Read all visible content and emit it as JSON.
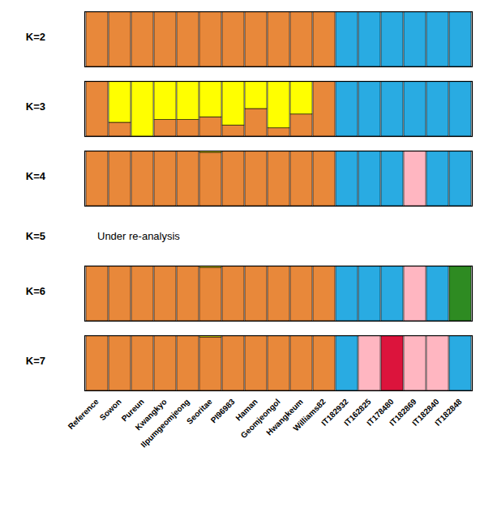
{
  "chart_data": [
    {
      "type": "bar",
      "title": "K=2",
      "stacked": true,
      "tick_labels": false,
      "ylim": [
        0,
        1
      ],
      "categories": [
        "Reference",
        "Sowon",
        "Pureun",
        "Kwangkyo",
        "Ilpumgeomjeong",
        "Seoritae",
        "PI96983",
        "Haman",
        "Geomjeongol",
        "Hwangkeum",
        "Williams82",
        "IT182932",
        "IT162825",
        "IT178480",
        "IT182869",
        "IT182840",
        "IT182848"
      ],
      "series": [
        {
          "color": "#E8883A",
          "values": [
            1.0,
            1.0,
            1.0,
            1.0,
            1.0,
            1.0,
            1.0,
            1.0,
            1.0,
            1.0,
            1.0,
            0.0,
            0.0,
            0.0,
            0.0,
            0.0,
            0.0
          ]
        },
        {
          "color": "#29ABE2",
          "values": [
            0.0,
            0.0,
            0.0,
            0.0,
            0.0,
            0.0,
            0.0,
            0.0,
            0.0,
            0.0,
            0.0,
            1.0,
            1.0,
            1.0,
            1.0,
            1.0,
            1.0
          ]
        }
      ]
    },
    {
      "type": "bar",
      "title": "K=3",
      "stacked": true,
      "tick_labels": false,
      "ylim": [
        0,
        1
      ],
      "categories": [
        "Reference",
        "Sowon",
        "Pureun",
        "Kwangkyo",
        "Ilpumgeomjeong",
        "Seoritae",
        "PI96983",
        "Haman",
        "Geomjeongol",
        "Hwangkeum",
        "Williams82",
        "IT182932",
        "IT162825",
        "IT178480",
        "IT182869",
        "IT182840",
        "IT182848"
      ],
      "series": [
        {
          "color": "#E8883A",
          "values": [
            1.0,
            0.25,
            0.0,
            0.3,
            0.3,
            0.35,
            0.2,
            0.5,
            0.15,
            0.4,
            1.0,
            0.0,
            0.0,
            0.0,
            0.0,
            0.0,
            0.0
          ]
        },
        {
          "color": "#FFFF00",
          "values": [
            0.0,
            0.75,
            1.0,
            0.7,
            0.7,
            0.65,
            0.8,
            0.5,
            0.85,
            0.6,
            0.0,
            0.0,
            0.0,
            0.0,
            0.0,
            0.0,
            0.0
          ]
        },
        {
          "color": "#29ABE2",
          "values": [
            0.0,
            0.0,
            0.0,
            0.0,
            0.0,
            0.0,
            0.0,
            0.0,
            0.0,
            0.0,
            0.0,
            1.0,
            1.0,
            1.0,
            1.0,
            1.0,
            1.0
          ]
        }
      ]
    },
    {
      "type": "bar",
      "title": "K=4",
      "stacked": true,
      "tick_labels": false,
      "ylim": [
        0,
        1
      ],
      "categories": [
        "Reference",
        "Sowon",
        "Pureun",
        "Kwangkyo",
        "Ilpumgeomjeong",
        "Seoritae",
        "PI96983",
        "Haman",
        "Geomjeongol",
        "Hwangkeum",
        "Williams82",
        "IT182932",
        "IT162825",
        "IT178480",
        "IT182869",
        "IT182840",
        "IT182848"
      ],
      "series": [
        {
          "color": "#E8883A",
          "values": [
            1.0,
            1.0,
            1.0,
            1.0,
            1.0,
            0.97,
            1.0,
            1.0,
            1.0,
            1.0,
            1.0,
            0.0,
            0.0,
            0.0,
            0.0,
            0.0,
            0.0
          ]
        },
        {
          "color": "#FFFF00",
          "values": [
            0.0,
            0.0,
            0.0,
            0.0,
            0.0,
            0.03,
            0.0,
            0.0,
            0.0,
            0.0,
            0.0,
            0.0,
            0.0,
            0.0,
            0.0,
            0.0,
            0.0
          ]
        },
        {
          "color": "#29ABE2",
          "values": [
            0.0,
            0.0,
            0.0,
            0.0,
            0.0,
            0.0,
            0.0,
            0.0,
            0.0,
            0.0,
            0.0,
            1.0,
            1.0,
            1.0,
            0.0,
            1.0,
            1.0
          ]
        },
        {
          "color": "#FFB6C1",
          "values": [
            0.0,
            0.0,
            0.0,
            0.0,
            0.0,
            0.0,
            0.0,
            0.0,
            0.0,
            0.0,
            0.0,
            0.0,
            0.0,
            0.0,
            1.0,
            0.0,
            0.0
          ]
        }
      ]
    },
    {
      "type": "text",
      "title": "K=5",
      "annotations": [
        "Under re-analysis"
      ]
    },
    {
      "type": "bar",
      "title": "K=6",
      "stacked": true,
      "tick_labels": false,
      "ylim": [
        0,
        1
      ],
      "categories": [
        "Reference",
        "Sowon",
        "Pureun",
        "Kwangkyo",
        "Ilpumgeomjeong",
        "Seoritae",
        "PI96983",
        "Haman",
        "Geomjeongol",
        "Hwangkeum",
        "Williams82",
        "IT182932",
        "IT162825",
        "IT178480",
        "IT182869",
        "IT182840",
        "IT182848"
      ],
      "series": [
        {
          "color": "#E8883A",
          "values": [
            1.0,
            1.0,
            1.0,
            1.0,
            1.0,
            0.97,
            1.0,
            1.0,
            1.0,
            1.0,
            1.0,
            0.0,
            0.0,
            0.0,
            0.0,
            0.0,
            0.0
          ]
        },
        {
          "color": "#FFFF00",
          "values": [
            0.0,
            0.0,
            0.0,
            0.0,
            0.0,
            0.03,
            0.0,
            0.0,
            0.0,
            0.0,
            0.0,
            0.0,
            0.0,
            0.0,
            0.0,
            0.0,
            0.0
          ]
        },
        {
          "color": "#29ABE2",
          "values": [
            0.0,
            0.0,
            0.0,
            0.0,
            0.0,
            0.0,
            0.0,
            0.0,
            0.0,
            0.0,
            0.0,
            1.0,
            1.0,
            1.0,
            0.0,
            1.0,
            0.0
          ]
        },
        {
          "color": "#FFB6C1",
          "values": [
            0.0,
            0.0,
            0.0,
            0.0,
            0.0,
            0.0,
            0.0,
            0.0,
            0.0,
            0.0,
            0.0,
            0.0,
            0.0,
            0.0,
            1.0,
            0.0,
            0.0
          ]
        },
        {
          "color": "#DC143C",
          "values": [
            0.0,
            0.0,
            0.0,
            0.0,
            0.0,
            0.0,
            0.0,
            0.0,
            0.0,
            0.0,
            0.0,
            0.0,
            0.0,
            0.0,
            0.0,
            0.0,
            0.0
          ]
        },
        {
          "color": "#2E8B22",
          "values": [
            0.0,
            0.0,
            0.0,
            0.0,
            0.0,
            0.0,
            0.0,
            0.0,
            0.0,
            0.0,
            0.0,
            0.0,
            0.0,
            0.0,
            0.0,
            0.0,
            1.0
          ]
        }
      ]
    },
    {
      "type": "bar",
      "title": "K=7",
      "stacked": true,
      "tick_labels": "x",
      "ylim": [
        0,
        1
      ],
      "categories": [
        "Reference",
        "Sowon",
        "Pureun",
        "Kwangkyo",
        "Ilpumgeomjeong",
        "Seoritae",
        "PI96983",
        "Haman",
        "Geomjeongol",
        "Hwangkeum",
        "Williams82",
        "IT182932",
        "IT162825",
        "IT178480",
        "IT182869",
        "IT182840",
        "IT182848"
      ],
      "series": [
        {
          "color": "#E8883A",
          "values": [
            1.0,
            1.0,
            1.0,
            1.0,
            1.0,
            0.97,
            1.0,
            1.0,
            1.0,
            1.0,
            1.0,
            0.0,
            0.0,
            0.0,
            0.0,
            0.0,
            0.0
          ]
        },
        {
          "color": "#FFFF00",
          "values": [
            0.0,
            0.0,
            0.0,
            0.0,
            0.0,
            0.03,
            0.0,
            0.0,
            0.0,
            0.0,
            0.0,
            0.0,
            0.0,
            0.0,
            0.0,
            0.0,
            0.0
          ]
        },
        {
          "color": "#29ABE2",
          "values": [
            0.0,
            0.0,
            0.0,
            0.0,
            0.0,
            0.0,
            0.0,
            0.0,
            0.0,
            0.0,
            0.0,
            1.0,
            0.0,
            0.0,
            0.0,
            0.0,
            1.0
          ]
        },
        {
          "color": "#FFB6C1",
          "values": [
            0.0,
            0.0,
            0.0,
            0.0,
            0.0,
            0.0,
            0.0,
            0.0,
            0.0,
            0.0,
            0.0,
            0.0,
            1.0,
            0.0,
            1.0,
            0.0,
            0.0
          ]
        },
        {
          "color": "#DC143C",
          "values": [
            0.0,
            0.0,
            0.0,
            0.0,
            0.0,
            0.0,
            0.0,
            0.0,
            0.0,
            0.0,
            0.0,
            0.0,
            0.0,
            1.0,
            0.0,
            0.0,
            0.0
          ]
        },
        {
          "color": "#FFB6C1",
          "values": [
            0.0,
            0.0,
            0.0,
            0.0,
            0.0,
            0.0,
            0.0,
            0.0,
            0.0,
            0.0,
            0.0,
            0.0,
            0.0,
            0.0,
            0.0,
            1.0,
            0.0
          ]
        },
        {
          "color": "#29ABE2",
          "values": [
            0.0,
            0.0,
            0.0,
            0.0,
            0.0,
            0.0,
            0.0,
            0.0,
            0.0,
            0.0,
            0.0,
            0.0,
            0.0,
            0.0,
            0.0,
            0.0,
            0.0
          ]
        }
      ]
    }
  ]
}
